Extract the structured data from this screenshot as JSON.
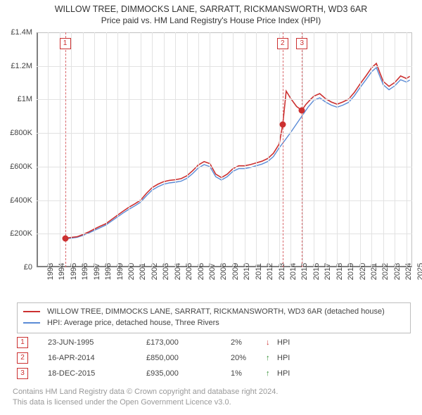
{
  "title": "WILLOW TREE, DIMMOCKS LANE, SARRATT, RICKMANSWORTH, WD3 6AR",
  "subtitle": "Price paid vs. HM Land Registry's House Price Index (HPI)",
  "chart": {
    "type": "line",
    "xlim": [
      1993,
      2025.5
    ],
    "ylim": [
      0,
      1400000
    ],
    "x_ticks": [
      1993,
      1994,
      1995,
      1996,
      1997,
      1998,
      1999,
      2000,
      2001,
      2002,
      2003,
      2004,
      2005,
      2006,
      2007,
      2008,
      2009,
      2010,
      2011,
      2012,
      2013,
      2014,
      2015,
      2016,
      2017,
      2018,
      2019,
      2020,
      2021,
      2022,
      2023,
      2024,
      2025
    ],
    "y_ticks": [
      0,
      200000,
      400000,
      600000,
      800000,
      1000000,
      1200000,
      1400000
    ],
    "y_tick_labels": [
      "£0",
      "£200K",
      "£400K",
      "£600K",
      "£800K",
      "£1M",
      "£1.2M",
      "£1.4M"
    ],
    "grid_color": "#e2e2e2",
    "axis_color": "#808080",
    "background_color": "#ffffff",
    "label_fontsize": 11,
    "series": {
      "red": {
        "label": "WILLOW TREE, DIMMOCKS LANE, SARRATT, RICKMANSWORTH, WD3 6AR (detached house)",
        "color": "#cc3030",
        "line_width": 1.6,
        "data": [
          [
            1995.5,
            173000
          ],
          [
            1996,
            178000
          ],
          [
            1996.5,
            182000
          ],
          [
            1997,
            195000
          ],
          [
            1997.5,
            210000
          ],
          [
            1998,
            228000
          ],
          [
            1998.5,
            245000
          ],
          [
            1999,
            260000
          ],
          [
            1999.5,
            285000
          ],
          [
            2000,
            310000
          ],
          [
            2000.5,
            335000
          ],
          [
            2001,
            358000
          ],
          [
            2001.5,
            378000
          ],
          [
            2002,
            400000
          ],
          [
            2002.5,
            440000
          ],
          [
            2003,
            475000
          ],
          [
            2003.5,
            495000
          ],
          [
            2004,
            510000
          ],
          [
            2004.5,
            518000
          ],
          [
            2005,
            522000
          ],
          [
            2005.5,
            528000
          ],
          [
            2006,
            545000
          ],
          [
            2006.5,
            575000
          ],
          [
            2007,
            610000
          ],
          [
            2007.5,
            630000
          ],
          [
            2008,
            618000
          ],
          [
            2008.5,
            555000
          ],
          [
            2009,
            535000
          ],
          [
            2009.5,
            555000
          ],
          [
            2010,
            588000
          ],
          [
            2010.5,
            605000
          ],
          [
            2011,
            605000
          ],
          [
            2011.5,
            612000
          ],
          [
            2012,
            622000
          ],
          [
            2012.5,
            632000
          ],
          [
            2013,
            648000
          ],
          [
            2013.5,
            680000
          ],
          [
            2014,
            735000
          ],
          [
            2014.3,
            850000
          ],
          [
            2014.6,
            1050000
          ],
          [
            2015,
            1005000
          ],
          [
            2015.5,
            958000
          ],
          [
            2015.95,
            935000
          ],
          [
            2016.3,
            970000
          ],
          [
            2016.7,
            1000000
          ],
          [
            2017,
            1020000
          ],
          [
            2017.5,
            1035000
          ],
          [
            2018,
            1005000
          ],
          [
            2018.5,
            985000
          ],
          [
            2019,
            972000
          ],
          [
            2019.5,
            985000
          ],
          [
            2020,
            1002000
          ],
          [
            2020.5,
            1042000
          ],
          [
            2021,
            1093000
          ],
          [
            2021.5,
            1140000
          ],
          [
            2022,
            1190000
          ],
          [
            2022.4,
            1215000
          ],
          [
            2022.7,
            1160000
          ],
          [
            2023,
            1108000
          ],
          [
            2023.5,
            1078000
          ],
          [
            2024,
            1102000
          ],
          [
            2024.5,
            1140000
          ],
          [
            2025,
            1125000
          ],
          [
            2025.3,
            1138000
          ]
        ]
      },
      "blue": {
        "label": "HPI: Average price, detached house, Three Rivers",
        "color": "#5a8bd6",
        "line_width": 1.4,
        "data": [
          [
            1995.5,
            169000
          ],
          [
            1996,
            174000
          ],
          [
            1996.5,
            178000
          ],
          [
            1997,
            190000
          ],
          [
            1997.5,
            204000
          ],
          [
            1998,
            220000
          ],
          [
            1998.5,
            236000
          ],
          [
            1999,
            252000
          ],
          [
            1999.5,
            276000
          ],
          [
            2000,
            300000
          ],
          [
            2000.5,
            324000
          ],
          [
            2001,
            346000
          ],
          [
            2001.5,
            366000
          ],
          [
            2002,
            388000
          ],
          [
            2002.5,
            426000
          ],
          [
            2003,
            460000
          ],
          [
            2003.5,
            480000
          ],
          [
            2004,
            495000
          ],
          [
            2004.5,
            503000
          ],
          [
            2005,
            507000
          ],
          [
            2005.5,
            513000
          ],
          [
            2006,
            530000
          ],
          [
            2006.5,
            558000
          ],
          [
            2007,
            592000
          ],
          [
            2007.5,
            612000
          ],
          [
            2008,
            600000
          ],
          [
            2008.5,
            540000
          ],
          [
            2009,
            520000
          ],
          [
            2009.5,
            540000
          ],
          [
            2010,
            572000
          ],
          [
            2010.5,
            588000
          ],
          [
            2011,
            588000
          ],
          [
            2011.5,
            595000
          ],
          [
            2012,
            605000
          ],
          [
            2012.5,
            615000
          ],
          [
            2013,
            630000
          ],
          [
            2013.5,
            660000
          ],
          [
            2014,
            712000
          ],
          [
            2014.5,
            758000
          ],
          [
            2015,
            805000
          ],
          [
            2015.5,
            855000
          ],
          [
            2016,
            905000
          ],
          [
            2016.5,
            955000
          ],
          [
            2017,
            995000
          ],
          [
            2017.5,
            1010000
          ],
          [
            2018,
            985000
          ],
          [
            2018.5,
            966000
          ],
          [
            2019,
            954000
          ],
          [
            2019.5,
            966000
          ],
          [
            2020,
            983000
          ],
          [
            2020.5,
            1022000
          ],
          [
            2021,
            1072000
          ],
          [
            2021.5,
            1118000
          ],
          [
            2022,
            1166000
          ],
          [
            2022.4,
            1190000
          ],
          [
            2022.7,
            1138000
          ],
          [
            2023,
            1088000
          ],
          [
            2023.5,
            1058000
          ],
          [
            2024,
            1082000
          ],
          [
            2024.5,
            1118000
          ],
          [
            2025,
            1104000
          ],
          [
            2025.3,
            1116000
          ]
        ]
      }
    },
    "markers": [
      {
        "n": "1",
        "x": 1995.47,
        "box_top": 8
      },
      {
        "n": "2",
        "x": 2014.29,
        "box_top": 8
      },
      {
        "n": "3",
        "x": 2015.96,
        "box_top": 8
      }
    ],
    "points": [
      {
        "x": 1995.47,
        "y": 173000,
        "color": "#cc3030"
      },
      {
        "x": 2014.29,
        "y": 850000,
        "color": "#cc3030"
      },
      {
        "x": 2015.96,
        "y": 935000,
        "color": "#cc3030"
      }
    ]
  },
  "legend": {
    "red_label": "WILLOW TREE, DIMMOCKS LANE, SARRATT, RICKMANSWORTH, WD3 6AR (detached house)",
    "blue_label": "HPI: Average price, detached house, Three Rivers",
    "red_color": "#cc3030",
    "blue_color": "#5a8bd6"
  },
  "sales": [
    {
      "n": "1",
      "date": "23-JUN-1995",
      "price": "£173,000",
      "pct": "2%",
      "arrow": "↓",
      "vs": "HPI",
      "arrow_color": "#cc3030"
    },
    {
      "n": "2",
      "date": "16-APR-2014",
      "price": "£850,000",
      "pct": "20%",
      "arrow": "↑",
      "vs": "HPI",
      "arrow_color": "#2a8a2a"
    },
    {
      "n": "3",
      "date": "18-DEC-2015",
      "price": "£935,000",
      "pct": "1%",
      "arrow": "↑",
      "vs": "HPI",
      "arrow_color": "#2a8a2a"
    }
  ],
  "footer": {
    "l1": "Contains HM Land Registry data © Crown copyright and database right 2024.",
    "l2": "This data is licensed under the Open Government Licence v3.0."
  }
}
